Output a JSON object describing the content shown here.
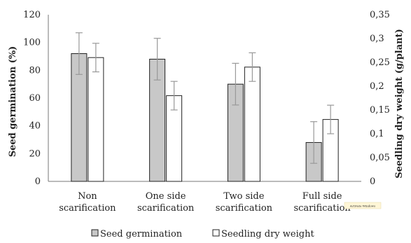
{
  "chart_data": {
    "type": "bar",
    "categories": [
      [
        "Non",
        "scarification"
      ],
      [
        "One side",
        "scarification"
      ],
      [
        "Two side",
        "scarification"
      ],
      [
        "Full side",
        "scarification"
      ]
    ],
    "series": [
      {
        "name": "Seed germination",
        "axis": "left",
        "color": "#c8c8c8",
        "values": [
          92,
          88,
          70,
          28
        ],
        "errors": [
          15,
          15,
          15,
          15
        ]
      },
      {
        "name": "Seedling dry weight",
        "axis": "right",
        "color": "#ffffff",
        "values": [
          0.26,
          0.18,
          0.24,
          0.13
        ],
        "errors": [
          0.03,
          0.03,
          0.03,
          0.03
        ]
      }
    ],
    "ylabel": "Seed germination (%)",
    "y2label": "Seedling dry weight (g/plant)",
    "ylim": [
      0,
      120
    ],
    "y2lim": [
      0,
      0.35
    ],
    "yticks": [
      "0",
      "20",
      "40",
      "60",
      "80",
      "100",
      "120"
    ],
    "y2ticks": [
      "0",
      "0,05",
      "0,1",
      "0,15",
      "0,2",
      "0,25",
      "0,3",
      "0,35"
    ],
    "grid": false,
    "legend_position": "bottom"
  },
  "watermark_text": "Activate Windows"
}
